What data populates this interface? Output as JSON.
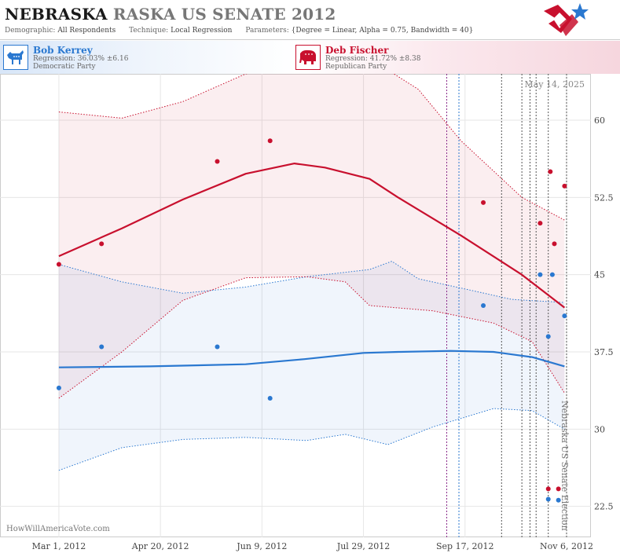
{
  "header": {
    "state": "NEBRASKA",
    "rest": "RASKA US SENATE 2012",
    "demographic_label": "Demographic:",
    "demographic_value": "All Respondents",
    "technique_label": "Technique:",
    "technique_value": "Local Regression",
    "parameters_label": "Parameters:",
    "parameters_value": "{Degree = Linear, Alpha = 0.75, Bandwidth = 40}"
  },
  "candidates": {
    "dem": {
      "name": "Bob Kerrey",
      "regression": "Regression: 36.03% ±6.16",
      "party": "Democratic Party",
      "color": "#2a78d0"
    },
    "rep": {
      "name": "Deb Fischer",
      "regression": "Regression: 41.72% ±8.38",
      "party": "Republican Party",
      "color": "#c8102e"
    }
  },
  "date_label": "May 14, 2025",
  "credit": "HowWillAmericaVote.com",
  "event_label": "Nebraska US Senate Election",
  "chart_data": {
    "type": "scatter",
    "x_start": "2012-02-01",
    "x_end": "2012-11-18",
    "ylim": [
      19.5,
      64.5
    ],
    "y_ticks": [
      22.5,
      30,
      37.5,
      45,
      52.5,
      60
    ],
    "y_tick_labels": [
      "22.5",
      "30",
      "37.5",
      "45",
      "52.5",
      "60"
    ],
    "x_ticks": [
      "2012-03-01",
      "2012-04-20",
      "2012-06-09",
      "2012-07-29",
      "2012-09-17",
      "2012-11-06"
    ],
    "x_tick_labels": [
      "Mar 1, 2012",
      "Apr 20, 2012",
      "Jun 9, 2012",
      "Jul 29, 2012",
      "Sep 17, 2012",
      "Nov 6, 2012"
    ],
    "event_lines": [
      {
        "date": "2012-09-08",
        "color": "#8a2a8a"
      },
      {
        "date": "2012-09-14",
        "color": "#2a78d0"
      },
      {
        "date": "2012-10-05",
        "color": "#555555"
      },
      {
        "date": "2012-10-15",
        "color": "#555555"
      },
      {
        "date": "2012-10-19",
        "color": "#555555"
      },
      {
        "date": "2012-10-22",
        "color": "#555555"
      },
      {
        "date": "2012-10-28",
        "color": "#555555"
      },
      {
        "date": "2012-11-06",
        "color": "#555555"
      }
    ],
    "series": [
      {
        "name": "Bob Kerrey",
        "color": "#2a78d0",
        "points": [
          {
            "x": "2012-03-01",
            "y": 34.0
          },
          {
            "x": "2012-03-22",
            "y": 38.0
          },
          {
            "x": "2012-05-18",
            "y": 38.0
          },
          {
            "x": "2012-06-13",
            "y": 33.0
          },
          {
            "x": "2012-09-26",
            "y": 42.0
          },
          {
            "x": "2012-10-24",
            "y": 45.0
          },
          {
            "x": "2012-10-30",
            "y": 45.0
          },
          {
            "x": "2012-10-28",
            "y": 39.0
          },
          {
            "x": "2012-11-05",
            "y": 41.0
          },
          {
            "x": "2012-10-28",
            "y": 23.2
          },
          {
            "x": "2012-11-02",
            "y": 23.1
          }
        ],
        "trend": [
          {
            "x": "2012-03-01",
            "y": 36.0
          },
          {
            "x": "2012-04-15",
            "y": 36.1
          },
          {
            "x": "2012-06-01",
            "y": 36.3
          },
          {
            "x": "2012-06-30",
            "y": 36.8
          },
          {
            "x": "2012-07-29",
            "y": 37.4
          },
          {
            "x": "2012-08-15",
            "y": 37.5
          },
          {
            "x": "2012-09-10",
            "y": 37.6
          },
          {
            "x": "2012-10-01",
            "y": 37.5
          },
          {
            "x": "2012-10-20",
            "y": 37.0
          },
          {
            "x": "2012-11-05",
            "y": 36.1
          }
        ],
        "upper": [
          {
            "x": "2012-03-01",
            "y": 46.0
          },
          {
            "x": "2012-04-01",
            "y": 44.3
          },
          {
            "x": "2012-05-01",
            "y": 43.2
          },
          {
            "x": "2012-06-01",
            "y": 43.8
          },
          {
            "x": "2012-07-01",
            "y": 44.8
          },
          {
            "x": "2012-08-01",
            "y": 45.5
          },
          {
            "x": "2012-08-12",
            "y": 46.3
          },
          {
            "x": "2012-08-25",
            "y": 44.6
          },
          {
            "x": "2012-09-15",
            "y": 43.7
          },
          {
            "x": "2012-10-10",
            "y": 42.6
          },
          {
            "x": "2012-11-05",
            "y": 42.3
          }
        ],
        "lower": [
          {
            "x": "2012-03-01",
            "y": 26.0
          },
          {
            "x": "2012-04-01",
            "y": 28.2
          },
          {
            "x": "2012-05-01",
            "y": 29.0
          },
          {
            "x": "2012-06-01",
            "y": 29.2
          },
          {
            "x": "2012-07-01",
            "y": 28.9
          },
          {
            "x": "2012-07-20",
            "y": 29.5
          },
          {
            "x": "2012-08-10",
            "y": 28.5
          },
          {
            "x": "2012-09-01",
            "y": 30.2
          },
          {
            "x": "2012-10-01",
            "y": 32.0
          },
          {
            "x": "2012-10-20",
            "y": 31.8
          },
          {
            "x": "2012-11-05",
            "y": 30.0
          }
        ]
      },
      {
        "name": "Deb Fischer",
        "color": "#c8102e",
        "points": [
          {
            "x": "2012-03-01",
            "y": 46.0
          },
          {
            "x": "2012-03-22",
            "y": 48.0
          },
          {
            "x": "2012-05-18",
            "y": 56.0
          },
          {
            "x": "2012-06-13",
            "y": 58.0
          },
          {
            "x": "2012-09-26",
            "y": 52.0
          },
          {
            "x": "2012-10-24",
            "y": 50.0
          },
          {
            "x": "2012-10-29",
            "y": 55.0
          },
          {
            "x": "2012-10-31",
            "y": 48.0
          },
          {
            "x": "2012-11-05",
            "y": 53.6
          },
          {
            "x": "2012-10-28",
            "y": 24.2
          },
          {
            "x": "2012-11-02",
            "y": 24.2
          }
        ],
        "trend": [
          {
            "x": "2012-03-01",
            "y": 46.8
          },
          {
            "x": "2012-04-01",
            "y": 49.5
          },
          {
            "x": "2012-05-01",
            "y": 52.3
          },
          {
            "x": "2012-06-01",
            "y": 54.8
          },
          {
            "x": "2012-06-25",
            "y": 55.8
          },
          {
            "x": "2012-07-10",
            "y": 55.4
          },
          {
            "x": "2012-08-01",
            "y": 54.3
          },
          {
            "x": "2012-08-15",
            "y": 52.5
          },
          {
            "x": "2012-09-15",
            "y": 48.8
          },
          {
            "x": "2012-10-15",
            "y": 45.0
          },
          {
            "x": "2012-11-05",
            "y": 41.8
          }
        ],
        "upper": [
          {
            "x": "2012-03-01",
            "y": 60.8
          },
          {
            "x": "2012-04-01",
            "y": 60.2
          },
          {
            "x": "2012-05-01",
            "y": 61.8
          },
          {
            "x": "2012-06-01",
            "y": 64.5
          },
          {
            "x": "2012-08-01",
            "y": 66.0
          },
          {
            "x": "2012-08-25",
            "y": 63.0
          },
          {
            "x": "2012-09-15",
            "y": 58.0
          },
          {
            "x": "2012-10-15",
            "y": 52.5
          },
          {
            "x": "2012-11-05",
            "y": 50.3
          }
        ],
        "lower": [
          {
            "x": "2012-03-01",
            "y": 33.0
          },
          {
            "x": "2012-04-01",
            "y": 37.5
          },
          {
            "x": "2012-05-01",
            "y": 42.5
          },
          {
            "x": "2012-06-01",
            "y": 44.7
          },
          {
            "x": "2012-07-01",
            "y": 44.8
          },
          {
            "x": "2012-07-20",
            "y": 44.3
          },
          {
            "x": "2012-08-01",
            "y": 42.0
          },
          {
            "x": "2012-09-01",
            "y": 41.5
          },
          {
            "x": "2012-10-01",
            "y": 40.3
          },
          {
            "x": "2012-10-20",
            "y": 38.5
          },
          {
            "x": "2012-11-05",
            "y": 33.5
          }
        ]
      }
    ]
  }
}
